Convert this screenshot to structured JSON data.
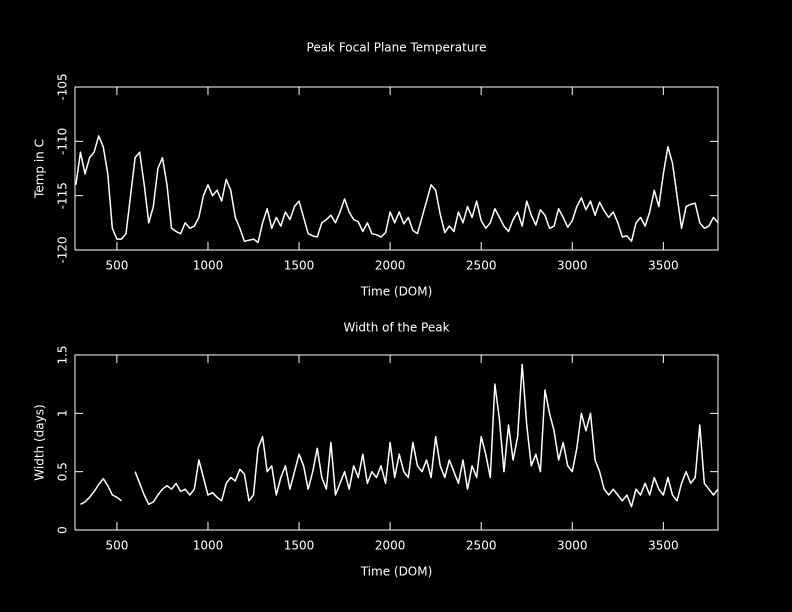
{
  "chart_data": [
    {
      "type": "line",
      "title": "Peak Focal Plane Temperature",
      "xlabel": "Time (DOM)",
      "ylabel": "Temp in C",
      "xlim": [
        270,
        3800
      ],
      "xticks": [
        500,
        1000,
        1500,
        2000,
        2500,
        3000,
        3500
      ],
      "ylim": [
        -120,
        -105
      ],
      "yticks": [
        -120,
        -115,
        -110,
        -105
      ],
      "color": "#ffffff",
      "x": [
        275,
        300,
        325,
        350,
        375,
        400,
        425,
        450,
        475,
        500,
        525,
        550,
        575,
        600,
        625,
        650,
        675,
        700,
        725,
        750,
        775,
        800,
        825,
        850,
        875,
        900,
        925,
        950,
        975,
        1000,
        1025,
        1050,
        1075,
        1100,
        1125,
        1150,
        1175,
        1200,
        1225,
        1250,
        1275,
        1300,
        1325,
        1350,
        1375,
        1400,
        1425,
        1450,
        1475,
        1500,
        1525,
        1550,
        1575,
        1600,
        1625,
        1650,
        1675,
        1700,
        1725,
        1750,
        1775,
        1800,
        1825,
        1850,
        1875,
        1900,
        1925,
        1950,
        1975,
        2000,
        2025,
        2050,
        2075,
        2100,
        2125,
        2150,
        2175,
        2200,
        2225,
        2250,
        2275,
        2300,
        2325,
        2350,
        2375,
        2400,
        2425,
        2450,
        2475,
        2500,
        2525,
        2550,
        2575,
        2600,
        2625,
        2650,
        2675,
        2700,
        2725,
        2750,
        2775,
        2800,
        2825,
        2850,
        2875,
        2900,
        2925,
        2950,
        2975,
        3000,
        3025,
        3050,
        3075,
        3100,
        3125,
        3150,
        3175,
        3200,
        3225,
        3250,
        3275,
        3300,
        3325,
        3350,
        3375,
        3400,
        3425,
        3450,
        3475,
        3500,
        3525,
        3550,
        3575,
        3600,
        3625,
        3650,
        3675,
        3700,
        3725,
        3750,
        3775,
        3800
      ],
      "values": [
        -114,
        -111,
        -113,
        -111.5,
        -111,
        -109.5,
        -110.5,
        -113,
        -118,
        -119,
        -119,
        -118.5,
        -115,
        -111.5,
        -111,
        -114,
        -117.5,
        -116,
        -112.5,
        -111.5,
        -114,
        -118,
        -118.3,
        -118.5,
        -117.5,
        -118,
        -117.8,
        -117,
        -115,
        -114,
        -115,
        -114.5,
        -115.5,
        -113.5,
        -114.5,
        -117,
        -118,
        -119.2,
        -119.1,
        -119,
        -119.3,
        -117.5,
        -116.2,
        -118,
        -117,
        -117.8,
        -116.5,
        -117.2,
        -116,
        -115.5,
        -117,
        -118.5,
        -118.7,
        -118.8,
        -117.5,
        -117.2,
        -116.8,
        -117.5,
        -116.5,
        -115.3,
        -116.5,
        -117.2,
        -117.4,
        -118.3,
        -117.5,
        -118.5,
        -118.6,
        -118.8,
        -118.4,
        -116.5,
        -117.5,
        -116.5,
        -117.6,
        -117,
        -118.2,
        -118.5,
        -117,
        -115.5,
        -114,
        -114.5,
        -116.7,
        -118.4,
        -117.8,
        -118.3,
        -116.5,
        -117.5,
        -116,
        -117,
        -115.5,
        -117.3,
        -118,
        -117.5,
        -116.2,
        -117,
        -117.8,
        -118.3,
        -117.2,
        -116.5,
        -117.8,
        -115.5,
        -116.8,
        -117.7,
        -116.3,
        -116.8,
        -118,
        -117.8,
        -116.2,
        -117,
        -117.9,
        -117.3,
        -116,
        -115.2,
        -116.3,
        -115.5,
        -116.8,
        -115.6,
        -116.4,
        -117,
        -116.5,
        -117.5,
        -118.8,
        -118.7,
        -119.2,
        -117.5,
        -117,
        -117.8,
        -116.5,
        -114.5,
        -116,
        -113,
        -110.5,
        -112,
        -115,
        -118,
        -116,
        -115.8,
        -115.7,
        -117.5,
        -118,
        -117.8,
        -117,
        -117.5
      ]
    },
    {
      "type": "line",
      "title": "Width of the Peak",
      "xlabel": "Time (DOM)",
      "ylabel": "Width (days)",
      "xlim": [
        270,
        3800
      ],
      "xticks": [
        500,
        1000,
        1500,
        2000,
        2500,
        3000,
        3500
      ],
      "ylim": [
        0,
        1.5
      ],
      "yticks": [
        0,
        0.5,
        1,
        1.5
      ],
      "color": "#ffffff",
      "x": [
        275,
        300,
        325,
        350,
        375,
        400,
        425,
        450,
        475,
        500,
        525,
        550,
        575,
        600,
        625,
        650,
        675,
        700,
        725,
        750,
        775,
        800,
        825,
        850,
        875,
        900,
        925,
        950,
        975,
        1000,
        1025,
        1050,
        1075,
        1100,
        1125,
        1150,
        1175,
        1200,
        1225,
        1250,
        1275,
        1300,
        1325,
        1350,
        1375,
        1400,
        1425,
        1450,
        1475,
        1500,
        1525,
        1550,
        1575,
        1600,
        1625,
        1650,
        1675,
        1700,
        1725,
        1750,
        1775,
        1800,
        1825,
        1850,
        1875,
        1900,
        1925,
        1950,
        1975,
        2000,
        2025,
        2050,
        2075,
        2100,
        2125,
        2150,
        2175,
        2200,
        2225,
        2250,
        2275,
        2300,
        2325,
        2350,
        2375,
        2400,
        2425,
        2450,
        2475,
        2500,
        2525,
        2550,
        2575,
        2600,
        2625,
        2650,
        2675,
        2700,
        2725,
        2750,
        2775,
        2800,
        2825,
        2850,
        2875,
        2900,
        2925,
        2950,
        2975,
        3000,
        3025,
        3050,
        3075,
        3100,
        3125,
        3150,
        3175,
        3200,
        3225,
        3250,
        3275,
        3300,
        3325,
        3350,
        3375,
        3400,
        3425,
        3450,
        3475,
        3500,
        3525,
        3550,
        3575,
        3600,
        3625,
        3650,
        3675,
        3700,
        3725,
        3750,
        3775,
        3800
      ],
      "values": [
        null,
        0.22,
        0.24,
        0.28,
        0.33,
        0.39,
        0.44,
        0.38,
        0.3,
        0.28,
        0.25,
        null,
        null,
        0.5,
        0.4,
        0.3,
        0.22,
        0.24,
        0.3,
        0.35,
        0.38,
        0.35,
        0.4,
        0.33,
        0.35,
        0.3,
        0.35,
        0.6,
        0.45,
        0.3,
        0.32,
        0.28,
        0.25,
        0.4,
        0.45,
        0.42,
        0.52,
        0.48,
        0.25,
        0.3,
        0.7,
        0.8,
        0.5,
        0.55,
        0.3,
        0.45,
        0.55,
        0.35,
        0.5,
        0.65,
        0.55,
        0.35,
        0.5,
        0.7,
        0.45,
        0.35,
        0.75,
        0.3,
        0.4,
        0.5,
        0.35,
        0.55,
        0.45,
        0.65,
        0.4,
        0.5,
        0.45,
        0.55,
        0.4,
        0.75,
        0.45,
        0.65,
        0.5,
        0.45,
        0.75,
        0.55,
        0.5,
        0.6,
        0.45,
        0.8,
        0.55,
        0.45,
        0.6,
        0.5,
        0.4,
        0.6,
        0.35,
        0.55,
        0.45,
        0.8,
        0.65,
        0.45,
        1.25,
        0.95,
        0.5,
        0.9,
        0.6,
        0.8,
        1.42,
        0.9,
        0.55,
        0.65,
        0.5,
        1.2,
        1.0,
        0.85,
        0.6,
        0.75,
        0.55,
        0.5,
        0.7,
        1.0,
        0.85,
        1.0,
        0.6,
        0.5,
        0.35,
        0.3,
        0.35,
        0.3,
        0.25,
        0.3,
        0.2,
        0.35,
        0.3,
        0.4,
        0.3,
        0.45,
        0.35,
        0.3,
        0.45,
        0.3,
        0.25,
        0.4,
        0.5,
        0.4,
        0.45,
        0.9,
        0.4,
        0.35,
        0.3,
        0.35
      ]
    }
  ]
}
